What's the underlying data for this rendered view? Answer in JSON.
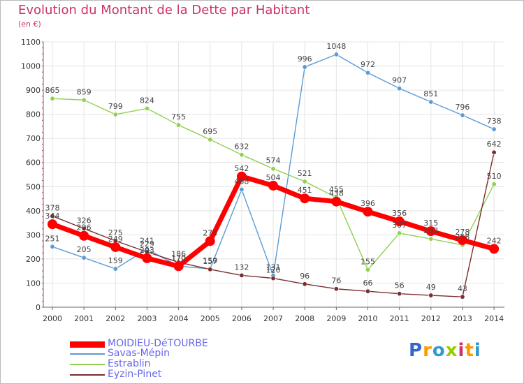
{
  "header": {
    "title": "Evolution du Montant de la Dette par Habitant",
    "subtitle": "(en €)"
  },
  "brand": {
    "text": "Proxiti",
    "letters": [
      "P",
      "r",
      "o",
      "x",
      "i",
      "t",
      "i"
    ],
    "colors": [
      "#3366cc",
      "#ff9900",
      "#3399cc",
      "#99cc00",
      "#cc3366",
      "#ff9900",
      "#3399cc"
    ]
  },
  "chart_data": {
    "type": "line",
    "title": "Evolution du Montant de la Dette par Habitant",
    "ylabel": "(en €)",
    "xlabel": "",
    "ylim": [
      0,
      1100
    ],
    "yticks": [
      0,
      100,
      200,
      300,
      400,
      500,
      600,
      700,
      800,
      900,
      1000,
      1100
    ],
    "categories": [
      "2000",
      "2001",
      "2002",
      "2003",
      "2004",
      "2005",
      "2006",
      "2007",
      "2008",
      "2009",
      "2010",
      "2011",
      "2012",
      "2013",
      "2014"
    ],
    "grid": true,
    "legend_position": "bottom-left",
    "series": [
      {
        "name": "Savas-Mépin",
        "color": "#5b9bd5",
        "values": [
          251,
          205,
          159,
          241,
          170,
          159,
          488,
          131,
          996,
          1048,
          972,
          907,
          851,
          796,
          738
        ],
        "labels": [
          "251",
          "205",
          "159",
          "241",
          "170",
          "159",
          "488",
          "131",
          "996",
          "1048",
          "972",
          "907",
          "851",
          "796",
          "738"
        ]
      },
      {
        "name": "Estrablin",
        "color": "#92d050",
        "values": [
          865,
          859,
          799,
          824,
          755,
          695,
          632,
          574,
          521,
          455,
          155,
          307,
          283,
          258,
          510
        ],
        "labels": [
          "865",
          "859",
          "799",
          "824",
          "755",
          "695",
          "632",
          "574",
          "521",
          "455",
          "155",
          "307",
          "283",
          "258",
          "510"
        ]
      },
      {
        "name": "Eyzin-Pinet",
        "color": "#7a2e2e",
        "values": [
          378,
          326,
          275,
          229,
          186,
          157,
          132,
          120,
          96,
          76,
          66,
          56,
          49,
          43,
          642
        ],
        "labels": [
          "378",
          "326",
          "275",
          "229",
          "186",
          "157",
          "132",
          "120",
          "96",
          "76",
          "66",
          "56",
          "49",
          "43",
          "642"
        ]
      },
      {
        "name": "MOIDIEU-DéTOURBE",
        "color": "#ff0000",
        "values": [
          344,
          296,
          249,
          203,
          170,
          274,
          542,
          504,
          451,
          438,
          396,
          356,
          315,
          278,
          242
        ],
        "labels": [
          "344",
          "296",
          "249",
          "203",
          "170",
          "274",
          "542",
          "504",
          "451",
          "438",
          "396",
          "356",
          "315",
          "278",
          "242"
        ]
      }
    ]
  }
}
